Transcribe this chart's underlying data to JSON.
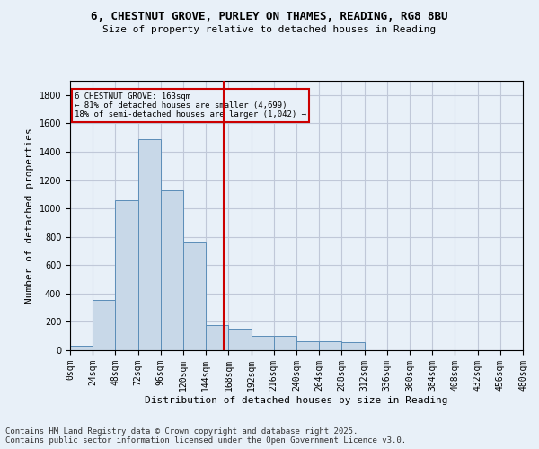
{
  "title_line1": "6, CHESTNUT GROVE, PURLEY ON THAMES, READING, RG8 8BU",
  "title_line2": "Size of property relative to detached houses in Reading",
  "xlabel": "Distribution of detached houses by size in Reading",
  "ylabel": "Number of detached properties",
  "bins": [
    0,
    24,
    48,
    72,
    96,
    120,
    144,
    168,
    192,
    216,
    240,
    264,
    288,
    312,
    336,
    360,
    384,
    408,
    432,
    456,
    480
  ],
  "bin_labels": [
    "0sqm",
    "24sqm",
    "48sqm",
    "72sqm",
    "96sqm",
    "120sqm",
    "144sqm",
    "168sqm",
    "192sqm",
    "216sqm",
    "240sqm",
    "264sqm",
    "288sqm",
    "312sqm",
    "336sqm",
    "360sqm",
    "384sqm",
    "408sqm",
    "432sqm",
    "456sqm",
    "480sqm"
  ],
  "bar_heights": [
    30,
    355,
    1060,
    1490,
    1130,
    760,
    180,
    155,
    100,
    100,
    65,
    65,
    60,
    0,
    0,
    0,
    0,
    0,
    0,
    0
  ],
  "bar_color": "#c8d8e8",
  "bar_edge_color": "#5b8db8",
  "property_size": 163,
  "property_line_color": "#cc0000",
  "annotation_text": "6 CHESTNUT GROVE: 163sqm\n← 81% of detached houses are smaller (4,699)\n18% of semi-detached houses are larger (1,042) →",
  "ylim": [
    0,
    1900
  ],
  "yticks": [
    0,
    200,
    400,
    600,
    800,
    1000,
    1200,
    1400,
    1600,
    1800
  ],
  "grid_color": "#c0c8d8",
  "background_color": "#e8f0f8",
  "footer_text": "Contains HM Land Registry data © Crown copyright and database right 2025.\nContains public sector information licensed under the Open Government Licence v3.0.",
  "footnote_fontsize": 6.5,
  "title_fontsize": 9,
  "subtitle_fontsize": 8,
  "xlabel_fontsize": 8,
  "ylabel_fontsize": 8,
  "tick_fontsize": 7
}
